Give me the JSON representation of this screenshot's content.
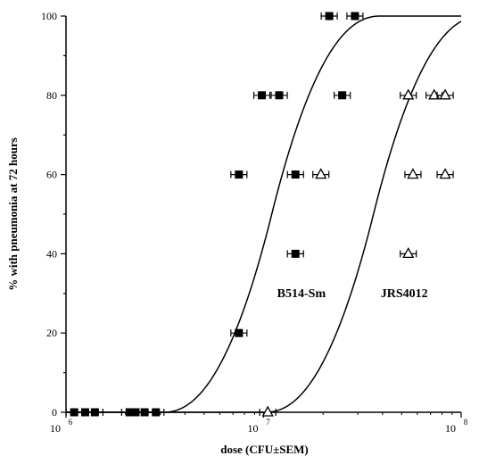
{
  "chart_data": {
    "type": "scatter",
    "xlabel": "dose (CFU±SEM)",
    "ylabel": "% with pneumonia at 72 hours",
    "xscale": "log",
    "xlim": [
      1000000,
      100000000
    ],
    "ylim": [
      0,
      100
    ],
    "x_tick_labels": [
      {
        "base": "10",
        "exp": "6"
      },
      {
        "base": "10",
        "exp": "7"
      },
      {
        "base": "10",
        "exp": "8"
      }
    ],
    "y_tick_labels": [
      "0",
      "20",
      "40",
      "60",
      "80",
      "100"
    ],
    "series": [
      {
        "name": "B514-Sm",
        "marker": "filled-square",
        "color": "#000000",
        "points": [
          {
            "x": 1100000,
            "y": 0
          },
          {
            "x": 1250000,
            "y": 0
          },
          {
            "x": 1400000,
            "y": 0
          },
          {
            "x": 2100000,
            "y": 0
          },
          {
            "x": 2250000,
            "y": 0
          },
          {
            "x": 2500000,
            "y": 0
          },
          {
            "x": 2850000,
            "y": 0
          },
          {
            "x": 7500000,
            "y": 20
          },
          {
            "x": 14500000,
            "y": 40
          },
          {
            "x": 7500000,
            "y": 60
          },
          {
            "x": 14500000,
            "y": 60
          },
          {
            "x": 9800000,
            "y": 80
          },
          {
            "x": 12000000,
            "y": 80
          },
          {
            "x": 25000000,
            "y": 80
          },
          {
            "x": 21500000,
            "y": 100
          },
          {
            "x": 29000000,
            "y": 100
          }
        ]
      },
      {
        "name": "JRS4012",
        "marker": "open-triangle",
        "color": "#000000",
        "points": [
          {
            "x": 10500000,
            "y": 0
          },
          {
            "x": 54000000,
            "y": 40
          },
          {
            "x": 19500000,
            "y": 60
          },
          {
            "x": 57000000,
            "y": 60
          },
          {
            "x": 83000000,
            "y": 60
          },
          {
            "x": 54000000,
            "y": 80
          },
          {
            "x": 73000000,
            "y": 80
          },
          {
            "x": 83000000,
            "y": 80
          }
        ]
      }
    ],
    "curves": [
      {
        "label": "B514-Sm",
        "midpoint_x": 11000000
      },
      {
        "label": "JRS4012",
        "midpoint_x": 36000000
      }
    ],
    "grid": false,
    "legend": "none"
  }
}
